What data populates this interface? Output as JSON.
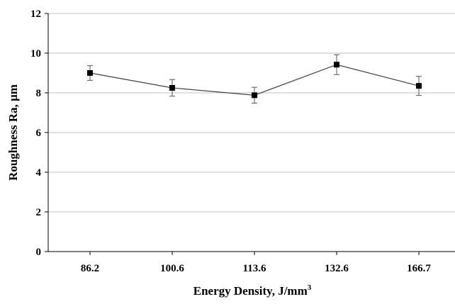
{
  "chart_data": {
    "type": "line",
    "categories": [
      "86.2",
      "100.6",
      "113.6",
      "132.6",
      "166.7"
    ],
    "series": [
      {
        "values": [
          9.0,
          8.25,
          7.88,
          9.42,
          8.35
        ],
        "error": [
          0.37,
          0.42,
          0.4,
          0.5,
          0.48
        ]
      }
    ],
    "xlabel": "Energy Density, J/mm",
    "xlabel_superscript": "3",
    "ylabel": "Roughness Ra, µm",
    "ylim": [
      0,
      12
    ],
    "yticks": [
      "0",
      "2",
      "4",
      "6",
      "8",
      "10",
      "12"
    ],
    "grid": true,
    "legend": "none",
    "colors": {
      "line": "#404040",
      "marker": "#000000",
      "grid": "#c0c0c0",
      "axis": "#000000"
    }
  }
}
